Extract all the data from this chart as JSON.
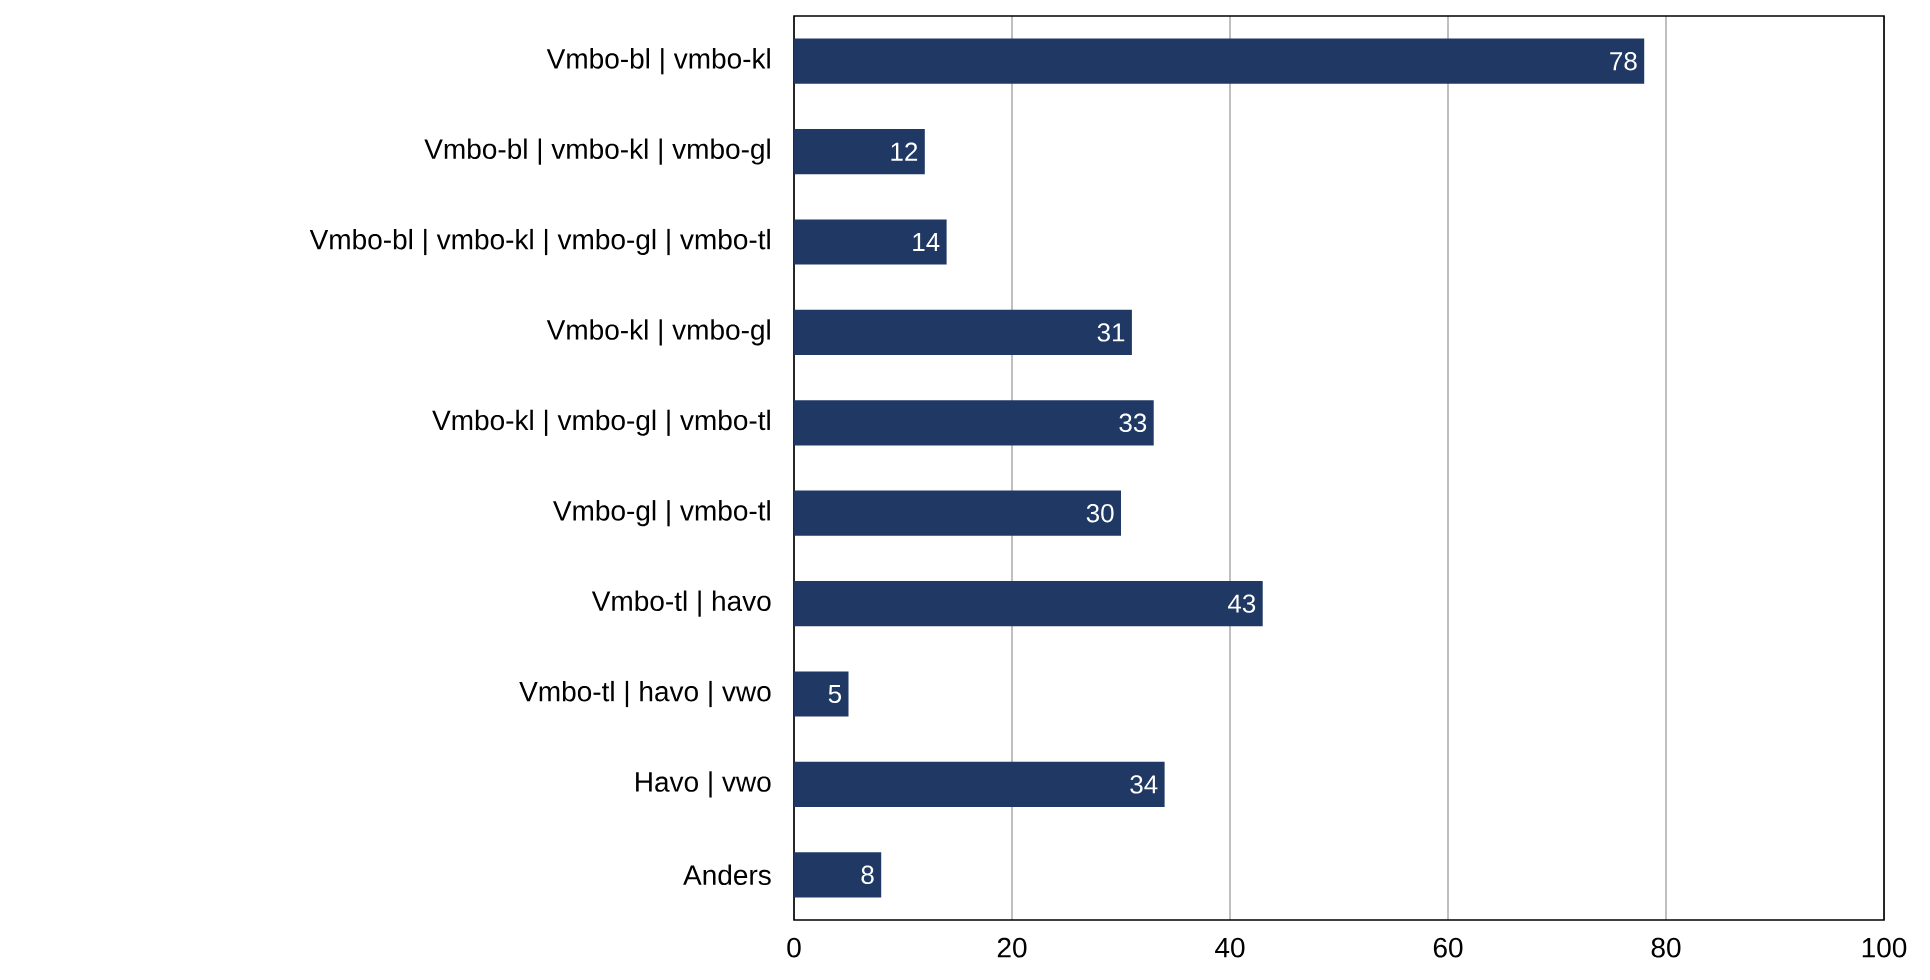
{
  "chart_data": {
    "type": "bar",
    "orientation": "horizontal",
    "categories": [
      "Vmbo-bl | vmbo-kl",
      "Vmbo-bl | vmbo-kl | vmbo-gl",
      "Vmbo-bl | vmbo-kl | vmbo-gl | vmbo-tl",
      "Vmbo-kl | vmbo-gl",
      "Vmbo-kl | vmbo-gl | vmbo-tl",
      "Vmbo-gl | vmbo-tl",
      "Vmbo-tl | havo",
      "Vmbo-tl | havo | vwo",
      "Havo | vwo",
      "Anders"
    ],
    "values": [
      78,
      12,
      14,
      31,
      33,
      30,
      43,
      5,
      34,
      8
    ],
    "color": "#1f3864",
    "xlim": [
      0,
      100
    ],
    "xticks": [
      0,
      20,
      40,
      60,
      80,
      100
    ],
    "grid": "x",
    "data_labels": true
  }
}
